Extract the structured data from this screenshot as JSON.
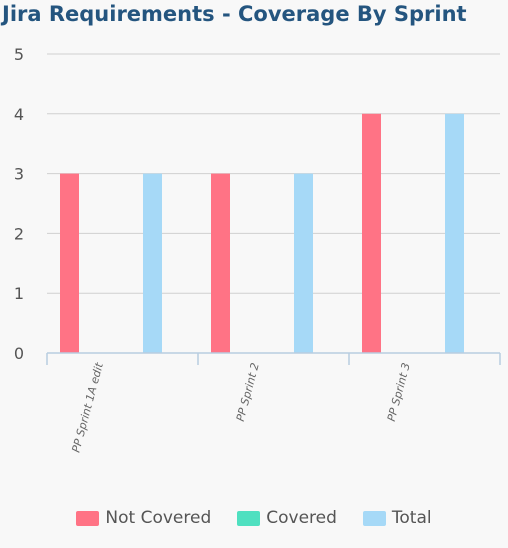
{
  "chart_data": {
    "type": "bar",
    "title": "Jira Requirements - Coverage By Sprint",
    "categories": [
      "PP Sprint 1A edit",
      "PP Sprint 2",
      "PP Sprint 3"
    ],
    "series": [
      {
        "name": "Not Covered",
        "color": "#ff7385",
        "values": [
          3,
          3,
          4
        ]
      },
      {
        "name": "Covered",
        "color": "#4fe0c0",
        "values": [
          0,
          0,
          0
        ]
      },
      {
        "name": "Total",
        "color": "#a6d9f7",
        "values": [
          3,
          3,
          4
        ]
      }
    ],
    "yticks": [
      "0",
      "1",
      "2",
      "3",
      "4",
      "5"
    ],
    "ylim": [
      0,
      5
    ],
    "grid": true,
    "legend_position": "bottom"
  }
}
